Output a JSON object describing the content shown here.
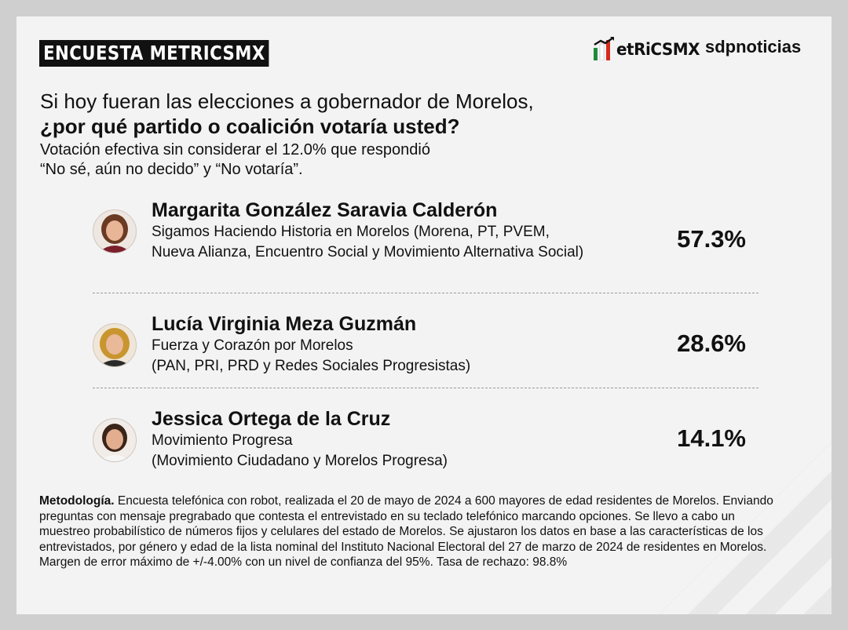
{
  "header": {
    "badge": "ENCUESTA METRICSMX",
    "logo_metrics": "METRICSMX",
    "logo_metrics_text": "etRiCSMX",
    "logo_sdp": "sdpnoticias"
  },
  "question": {
    "line1": "Si hoy fueran las elecciones a gobernador de Morelos,",
    "line2": "¿por qué partido o coalición votaría usted?"
  },
  "subtitle": {
    "line1": "Votación efectiva sin considerar el 12.0% que respondió",
    "line2": "“No sé, aún no decido” y “No votaría”."
  },
  "chart_data": {
    "type": "table",
    "title": "Si hoy fueran las elecciones a gobernador de Morelos, ¿por qué partido o coalición votaría usted?",
    "rows": [
      {
        "name": "Margarita González Saravia Calderón",
        "coalition_lines": [
          "Sigamos Haciendo Historia en Morelos (Morena, PT, PVEM,",
          "Nueva Alianza, Encuentro Social y Movimiento Alternativa Social)"
        ],
        "value": 57.3,
        "label": "57.3%"
      },
      {
        "name": "Lucía Virginia Meza Guzmán",
        "coalition_lines": [
          "Fuerza y Corazón por Morelos",
          "(PAN, PRI, PRD y Redes Sociales Progresistas)"
        ],
        "value": 28.6,
        "label": "28.6%"
      },
      {
        "name": "Jessica Ortega de la Cruz",
        "coalition_lines": [
          "Movimiento Progresa",
          "(Movimiento Ciudadano y Morelos Progresa)"
        ],
        "value": 14.1,
        "label": "14.1%"
      }
    ]
  },
  "methodology": {
    "label": "Metodología.",
    "text": "Encuesta telefónica con robot, realizada el 20 de mayo de 2024 a 600 mayores de edad residentes de Morelos. Enviando preguntas con mensaje pregrabado que contesta el entrevistado en su teclado telefónico marcando opciones. Se llevo a cabo un muestreo probabilístico de números fijos y celulares del estado de Morelos. Se ajustaron los datos en base a las características de los entrevistados, por género y edad de la lista nominal del Instituto Nacional Electoral del 27 de marzo de 2024 de residentes en Morelos. Margen de error máximo de +/-4.00% con un nivel de confianza del 95%. Tasa de rechazo: 98.8%"
  },
  "colors": {
    "background": "#f3f3f3",
    "frame": "#cfcfcf",
    "badge_bg": "#111111",
    "text": "#111111",
    "logo_green": "#1f8a3b",
    "logo_red": "#d52b1e"
  }
}
